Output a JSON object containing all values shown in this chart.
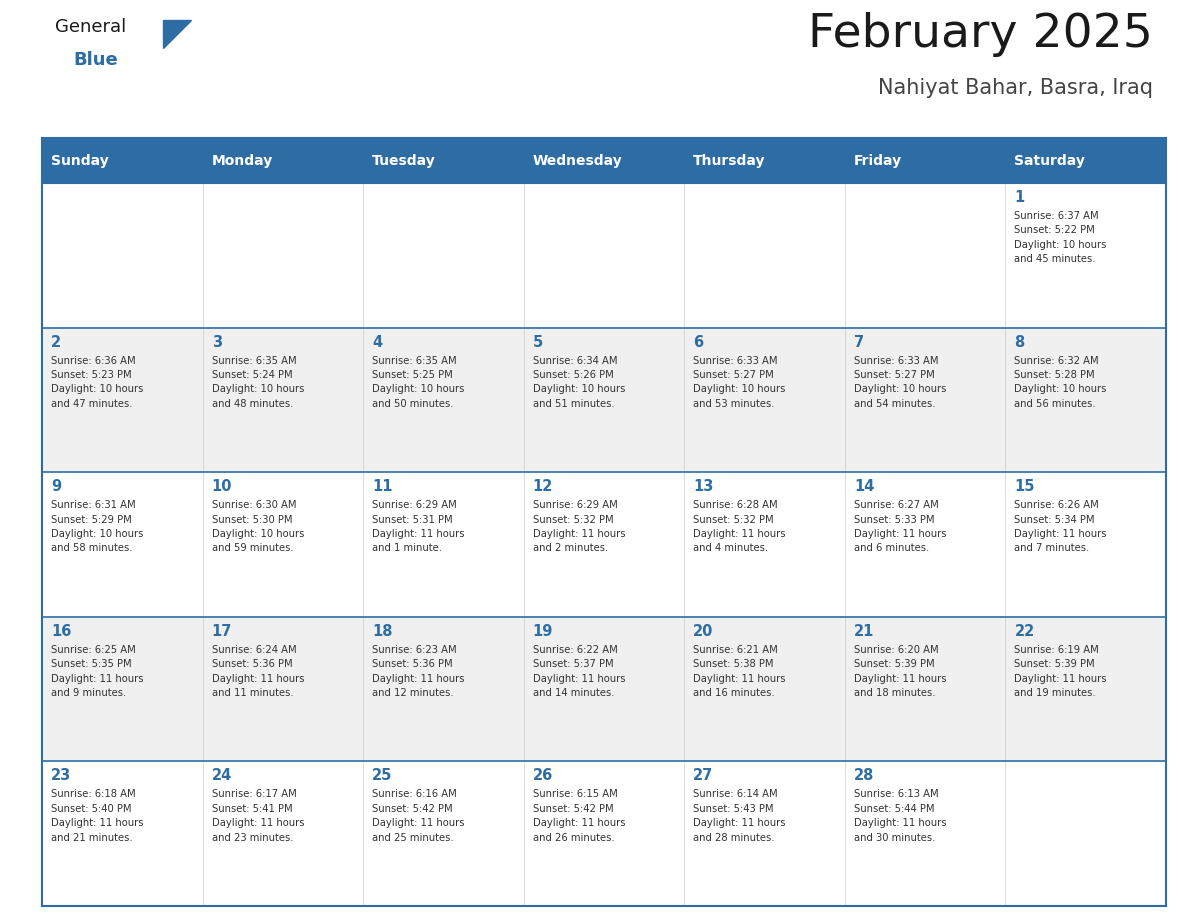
{
  "title": "February 2025",
  "subtitle": "Nahiyat Bahar, Basra, Iraq",
  "header_bg": "#2E6DA4",
  "header_text_color": "#FFFFFF",
  "cell_bg": "#FFFFFF",
  "alt_row_bg": "#F0F0F0",
  "border_color": "#2E6DA4",
  "row_border_color": "#5B9BD5",
  "day_headers": [
    "Sunday",
    "Monday",
    "Tuesday",
    "Wednesday",
    "Thursday",
    "Friday",
    "Saturday"
  ],
  "title_color": "#1a1a1a",
  "subtitle_color": "#444444",
  "day_num_color": "#2E6DA4",
  "cell_text_color": "#333333",
  "weeks": [
    [
      {
        "day": 0,
        "info": ""
      },
      {
        "day": 0,
        "info": ""
      },
      {
        "day": 0,
        "info": ""
      },
      {
        "day": 0,
        "info": ""
      },
      {
        "day": 0,
        "info": ""
      },
      {
        "day": 0,
        "info": ""
      },
      {
        "day": 1,
        "info": "Sunrise: 6:37 AM\nSunset: 5:22 PM\nDaylight: 10 hours\nand 45 minutes."
      }
    ],
    [
      {
        "day": 2,
        "info": "Sunrise: 6:36 AM\nSunset: 5:23 PM\nDaylight: 10 hours\nand 47 minutes."
      },
      {
        "day": 3,
        "info": "Sunrise: 6:35 AM\nSunset: 5:24 PM\nDaylight: 10 hours\nand 48 minutes."
      },
      {
        "day": 4,
        "info": "Sunrise: 6:35 AM\nSunset: 5:25 PM\nDaylight: 10 hours\nand 50 minutes."
      },
      {
        "day": 5,
        "info": "Sunrise: 6:34 AM\nSunset: 5:26 PM\nDaylight: 10 hours\nand 51 minutes."
      },
      {
        "day": 6,
        "info": "Sunrise: 6:33 AM\nSunset: 5:27 PM\nDaylight: 10 hours\nand 53 minutes."
      },
      {
        "day": 7,
        "info": "Sunrise: 6:33 AM\nSunset: 5:27 PM\nDaylight: 10 hours\nand 54 minutes."
      },
      {
        "day": 8,
        "info": "Sunrise: 6:32 AM\nSunset: 5:28 PM\nDaylight: 10 hours\nand 56 minutes."
      }
    ],
    [
      {
        "day": 9,
        "info": "Sunrise: 6:31 AM\nSunset: 5:29 PM\nDaylight: 10 hours\nand 58 minutes."
      },
      {
        "day": 10,
        "info": "Sunrise: 6:30 AM\nSunset: 5:30 PM\nDaylight: 10 hours\nand 59 minutes."
      },
      {
        "day": 11,
        "info": "Sunrise: 6:29 AM\nSunset: 5:31 PM\nDaylight: 11 hours\nand 1 minute."
      },
      {
        "day": 12,
        "info": "Sunrise: 6:29 AM\nSunset: 5:32 PM\nDaylight: 11 hours\nand 2 minutes."
      },
      {
        "day": 13,
        "info": "Sunrise: 6:28 AM\nSunset: 5:32 PM\nDaylight: 11 hours\nand 4 minutes."
      },
      {
        "day": 14,
        "info": "Sunrise: 6:27 AM\nSunset: 5:33 PM\nDaylight: 11 hours\nand 6 minutes."
      },
      {
        "day": 15,
        "info": "Sunrise: 6:26 AM\nSunset: 5:34 PM\nDaylight: 11 hours\nand 7 minutes."
      }
    ],
    [
      {
        "day": 16,
        "info": "Sunrise: 6:25 AM\nSunset: 5:35 PM\nDaylight: 11 hours\nand 9 minutes."
      },
      {
        "day": 17,
        "info": "Sunrise: 6:24 AM\nSunset: 5:36 PM\nDaylight: 11 hours\nand 11 minutes."
      },
      {
        "day": 18,
        "info": "Sunrise: 6:23 AM\nSunset: 5:36 PM\nDaylight: 11 hours\nand 12 minutes."
      },
      {
        "day": 19,
        "info": "Sunrise: 6:22 AM\nSunset: 5:37 PM\nDaylight: 11 hours\nand 14 minutes."
      },
      {
        "day": 20,
        "info": "Sunrise: 6:21 AM\nSunset: 5:38 PM\nDaylight: 11 hours\nand 16 minutes."
      },
      {
        "day": 21,
        "info": "Sunrise: 6:20 AM\nSunset: 5:39 PM\nDaylight: 11 hours\nand 18 minutes."
      },
      {
        "day": 22,
        "info": "Sunrise: 6:19 AM\nSunset: 5:39 PM\nDaylight: 11 hours\nand 19 minutes."
      }
    ],
    [
      {
        "day": 23,
        "info": "Sunrise: 6:18 AM\nSunset: 5:40 PM\nDaylight: 11 hours\nand 21 minutes."
      },
      {
        "day": 24,
        "info": "Sunrise: 6:17 AM\nSunset: 5:41 PM\nDaylight: 11 hours\nand 23 minutes."
      },
      {
        "day": 25,
        "info": "Sunrise: 6:16 AM\nSunset: 5:42 PM\nDaylight: 11 hours\nand 25 minutes."
      },
      {
        "day": 26,
        "info": "Sunrise: 6:15 AM\nSunset: 5:42 PM\nDaylight: 11 hours\nand 26 minutes."
      },
      {
        "day": 27,
        "info": "Sunrise: 6:14 AM\nSunset: 5:43 PM\nDaylight: 11 hours\nand 28 minutes."
      },
      {
        "day": 28,
        "info": "Sunrise: 6:13 AM\nSunset: 5:44 PM\nDaylight: 11 hours\nand 30 minutes."
      },
      {
        "day": 0,
        "info": ""
      }
    ]
  ]
}
